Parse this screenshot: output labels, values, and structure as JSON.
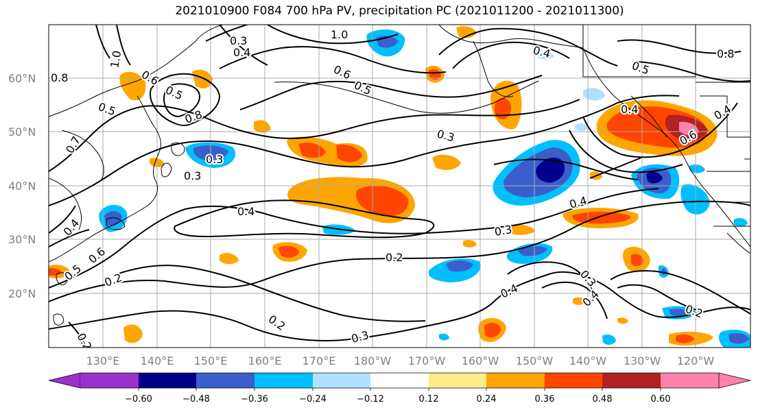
{
  "title": "2021010900 F084 700 hPa PV, precipitation PC (2021011200 - 2021011300)",
  "map": {
    "lat_ticks": [
      "60°N",
      "50°N",
      "40°N",
      "30°N",
      "20°N"
    ],
    "lon_ticks": [
      "130°E",
      "140°E",
      "150°E",
      "160°E",
      "170°E",
      "180°W",
      "170°W",
      "160°W",
      "150°W",
      "140°W",
      "130°W",
      "120°W"
    ],
    "contour_labels": [
      "1.0",
      "0.3",
      "0.4",
      "1.0",
      "0.8",
      "0.5",
      "0.6",
      "0.5",
      "0.4",
      "0.8",
      "0.6",
      "0.5",
      "0.8",
      "0.5",
      "0.3",
      "0.4",
      "0.4",
      "0.7",
      "0.3",
      "0.4",
      "0.3",
      "0.2",
      "0.4",
      "0.6",
      "0.5",
      "0.2",
      "0.3",
      "0.4",
      "0.3",
      "0.4",
      "0.2",
      "0.2",
      "0.3",
      "0.2",
      "0.6",
      "0.4"
    ]
  },
  "colorbar": {
    "tick_labels": [
      "−0.60",
      "−0.48",
      "−0.36",
      "−0.24",
      "−0.12",
      "0.12",
      "0.24",
      "0.36",
      "0.48",
      "0.60"
    ],
    "colors": [
      "#9932cc",
      "#00008b",
      "#3a5fcd",
      "#00bfff",
      "#b0e2ff",
      "#ffffff",
      "#ffec8b",
      "#ffa500",
      "#ff4500",
      "#b22222",
      "#ff82ab"
    ]
  }
}
